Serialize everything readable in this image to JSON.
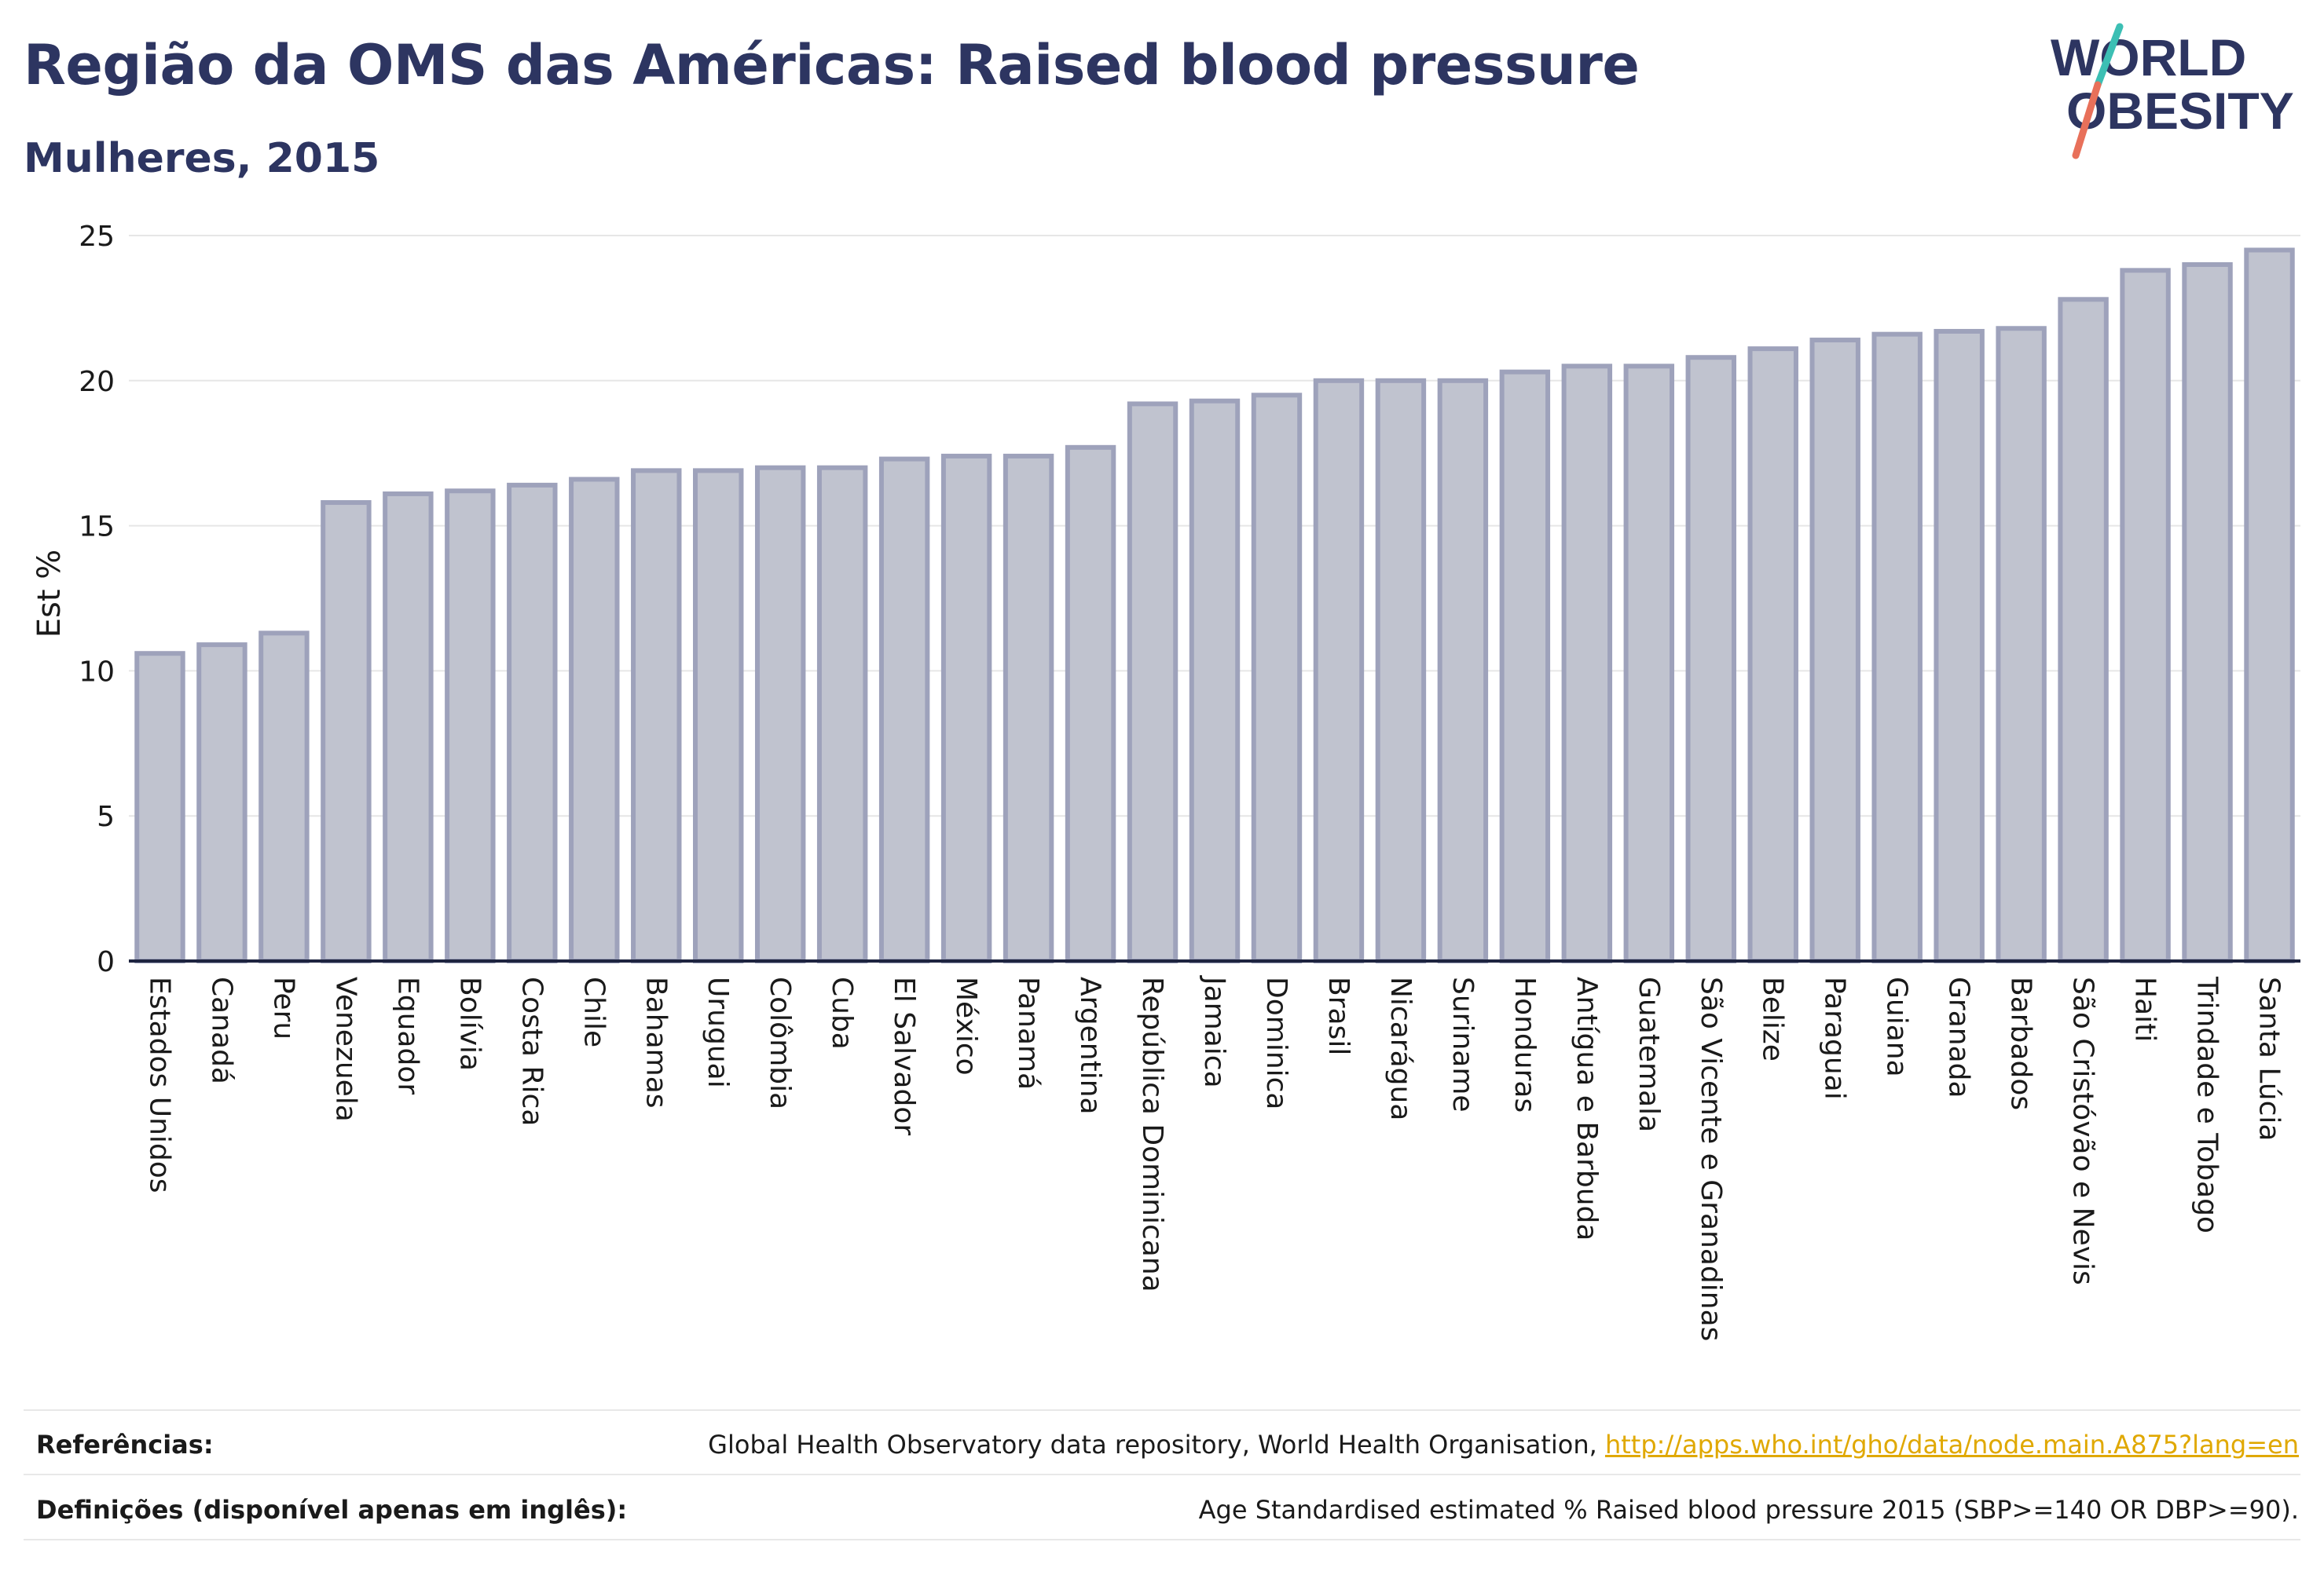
{
  "header": {
    "title": "Região da OMS das Américas: Raised blood pressure",
    "subtitle": "Mulheres, 2015"
  },
  "logo": {
    "line1": "WORLD",
    "line2": "OBESITY",
    "colors": {
      "text": "#2d3561",
      "slash_top": "#3cbfb4",
      "slash_bottom": "#e8705a"
    }
  },
  "chart_data": {
    "type": "bar",
    "ylabel": "Est %",
    "xlabel": "",
    "ylim": [
      0,
      25
    ],
    "yticks": [
      0,
      5,
      10,
      15,
      20,
      25
    ],
    "grid": true,
    "bar_fill": "#c0c3cf",
    "bar_stroke": "#9ea2bb",
    "categories": [
      "Estados Unidos",
      "Canadá",
      "Peru",
      "Venezuela",
      "Equador",
      "Bolívia",
      "Costa Rica",
      "Chile",
      "Bahamas",
      "Uruguai",
      "Colômbia",
      "Cuba",
      "El Salvador",
      "México",
      "Panamá",
      "Argentina",
      "República Dominicana",
      "Jamaica",
      "Dominica",
      "Brasil",
      "Nicarágua",
      "Suriname",
      "Honduras",
      "Antígua e Barbuda",
      "Guatemala",
      "São Vicente e Granadinas",
      "Belize",
      "Paraguai",
      "Guiana",
      "Granada",
      "Barbados",
      "São Cristóvão e Nevis",
      "Haiti",
      "Trindade e Tobago",
      "Santa Lúcia"
    ],
    "values": [
      10.6,
      10.9,
      11.3,
      15.8,
      16.1,
      16.2,
      16.4,
      16.6,
      16.9,
      16.9,
      17.0,
      17.0,
      17.3,
      17.4,
      17.4,
      17.7,
      19.2,
      19.3,
      19.5,
      20.0,
      20.0,
      20.0,
      20.3,
      20.5,
      20.5,
      20.8,
      21.1,
      21.4,
      21.6,
      21.7,
      21.8,
      22.8,
      23.8,
      24.0,
      24.5
    ]
  },
  "footer": {
    "references_label": "Referências:",
    "references_text": "Global Health Observatory data repository, World Health Organisation, ",
    "references_link": "http://apps.who.int/gho/data/node.main.A875?lang=en",
    "definitions_label": "Definições (disponível apenas em inglês):",
    "definitions_text": "Age Standardised estimated % Raised blood pressure 2015 (SBP>=140 OR DBP>=90)."
  }
}
